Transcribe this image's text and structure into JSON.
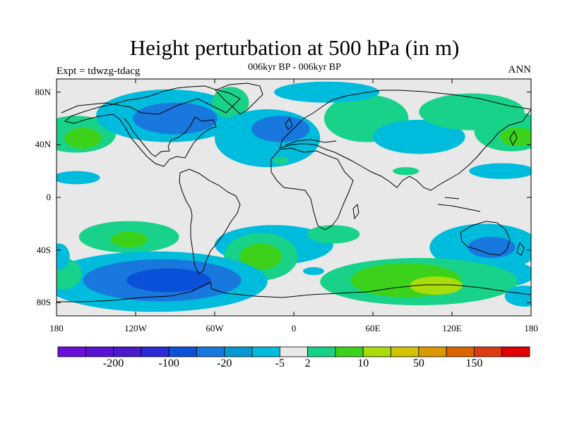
{
  "title": "Height perturbation at 500 hPa (in m)",
  "subtitle": "006kyr BP - 006kyr BP",
  "left_label": "Expt = tdwzg-tdacg",
  "right_label": "ANN",
  "lat_ticks": [
    {
      "value": 80,
      "label": "80N"
    },
    {
      "value": 40,
      "label": "40N"
    },
    {
      "value": 0,
      "label": "0"
    },
    {
      "value": -40,
      "label": "40S"
    },
    {
      "value": -80,
      "label": "80S"
    }
  ],
  "lon_ticks": [
    {
      "value": -180,
      "label": "180"
    },
    {
      "value": -120,
      "label": "120W"
    },
    {
      "value": -60,
      "label": "60W"
    },
    {
      "value": 0,
      "label": "0"
    },
    {
      "value": 60,
      "label": "60E"
    },
    {
      "value": 120,
      "label": "120E"
    },
    {
      "value": 180,
      "label": "180"
    }
  ],
  "colorbar": {
    "colors": [
      "#6a0fd8",
      "#5a12d2",
      "#4a18cc",
      "#2a2ad6",
      "#0a50d8",
      "#1878de",
      "#0898d0",
      "#00bcdc",
      "#e8e8e8",
      "#18d28a",
      "#3cd21c",
      "#a8dc0a",
      "#d2c200",
      "#dc9800",
      "#dc6400",
      "#dc3c14",
      "#e00000"
    ],
    "labels": [
      {
        "after_index": 1,
        "text": "-200"
      },
      {
        "after_index": 3,
        "text": "-100"
      },
      {
        "after_index": 5,
        "text": "-20"
      },
      {
        "after_index": 7,
        "text": "-5"
      },
      {
        "after_index": 8,
        "text": "2"
      },
      {
        "after_index": 10,
        "text": "10"
      },
      {
        "after_index": 12,
        "text": "50"
      },
      {
        "after_index": 14,
        "text": "150"
      }
    ]
  },
  "fields": [
    {
      "lon": -165,
      "lat": 48,
      "rx": 30,
      "ry": 14,
      "level": "pos1"
    },
    {
      "lon": -160,
      "lat": 45,
      "rx": 14,
      "ry": 8,
      "level": "pos2"
    },
    {
      "lon": -165,
      "lat": 15,
      "rx": 18,
      "ry": 5,
      "level": "neg1"
    },
    {
      "lon": -95,
      "lat": 62,
      "rx": 55,
      "ry": 20,
      "level": "neg1"
    },
    {
      "lon": -90,
      "lat": 60,
      "rx": 32,
      "ry": 12,
      "level": "neg2"
    },
    {
      "lon": -48,
      "lat": 72,
      "rx": 14,
      "ry": 12,
      "level": "pos1"
    },
    {
      "lon": -20,
      "lat": 45,
      "rx": 40,
      "ry": 22,
      "level": "neg1"
    },
    {
      "lon": -10,
      "lat": 52,
      "rx": 22,
      "ry": 10,
      "level": "neg2"
    },
    {
      "lon": 55,
      "lat": 60,
      "rx": 32,
      "ry": 18,
      "level": "pos1"
    },
    {
      "lon": 25,
      "lat": 80,
      "rx": 40,
      "ry": 8,
      "level": "neg1"
    },
    {
      "lon": 95,
      "lat": 46,
      "rx": 35,
      "ry": 13,
      "level": "neg1"
    },
    {
      "lon": 135,
      "lat": 65,
      "rx": 40,
      "ry": 14,
      "level": "pos1"
    },
    {
      "lon": 165,
      "lat": 50,
      "rx": 28,
      "ry": 15,
      "level": "pos1"
    },
    {
      "lon": 170,
      "lat": 46,
      "rx": 14,
      "ry": 7,
      "level": "pos2"
    },
    {
      "lon": 158,
      "lat": 20,
      "rx": 25,
      "ry": 6,
      "level": "neg1"
    },
    {
      "lon": 85,
      "lat": 20,
      "rx": 10,
      "ry": 3,
      "level": "pos1"
    },
    {
      "lon": -10,
      "lat": 28,
      "rx": 6,
      "ry": 3,
      "level": "pos1"
    },
    {
      "lon": -125,
      "lat": -30,
      "rx": 38,
      "ry": 12,
      "level": "pos1"
    },
    {
      "lon": -125,
      "lat": -32,
      "rx": 14,
      "ry": 6,
      "level": "pos2"
    },
    {
      "lon": -15,
      "lat": -36,
      "rx": 45,
      "ry": 15,
      "level": "neg1"
    },
    {
      "lon": -25,
      "lat": -45,
      "rx": 28,
      "ry": 18,
      "level": "pos1"
    },
    {
      "lon": -25,
      "lat": -45,
      "rx": 16,
      "ry": 10,
      "level": "pos2"
    },
    {
      "lon": 30,
      "lat": -28,
      "rx": 20,
      "ry": 7,
      "level": "pos1"
    },
    {
      "lon": 145,
      "lat": -38,
      "rx": 42,
      "ry": 18,
      "level": "neg1"
    },
    {
      "lon": 150,
      "lat": -38,
      "rx": 18,
      "ry": 8,
      "level": "neg2"
    },
    {
      "lon": 158,
      "lat": -58,
      "rx": 25,
      "ry": 10,
      "level": "neg1"
    },
    {
      "lon": 95,
      "lat": -64,
      "rx": 75,
      "ry": 18,
      "level": "pos1"
    },
    {
      "lon": 85,
      "lat": -63,
      "rx": 42,
      "ry": 13,
      "level": "pos2"
    },
    {
      "lon": 108,
      "lat": -67,
      "rx": 20,
      "ry": 7,
      "level": "pos3"
    },
    {
      "lon": -105,
      "lat": -64,
      "rx": 85,
      "ry": 23,
      "level": "neg1"
    },
    {
      "lon": -100,
      "lat": -63,
      "rx": 60,
      "ry": 16,
      "level": "neg2"
    },
    {
      "lon": -95,
      "lat": -63,
      "rx": 32,
      "ry": 9,
      "level": "neg3"
    },
    {
      "lon": -175,
      "lat": -58,
      "rx": 14,
      "ry": 12,
      "level": "pos1"
    },
    {
      "lon": -178,
      "lat": -45,
      "rx": 8,
      "ry": 10,
      "level": "neg1"
    },
    {
      "lon": 15,
      "lat": -56,
      "rx": 8,
      "ry": 3,
      "level": "neg1"
    },
    {
      "lon": 175,
      "lat": -75,
      "rx": 15,
      "ry": 8,
      "level": "neg1"
    }
  ],
  "level_colors": {
    "neg3": "#0a50d8",
    "neg2": "#1878de",
    "neg1": "#00bcdc",
    "pos1": "#18d28a",
    "pos2": "#3cd21c",
    "pos3": "#a8dc0a"
  }
}
